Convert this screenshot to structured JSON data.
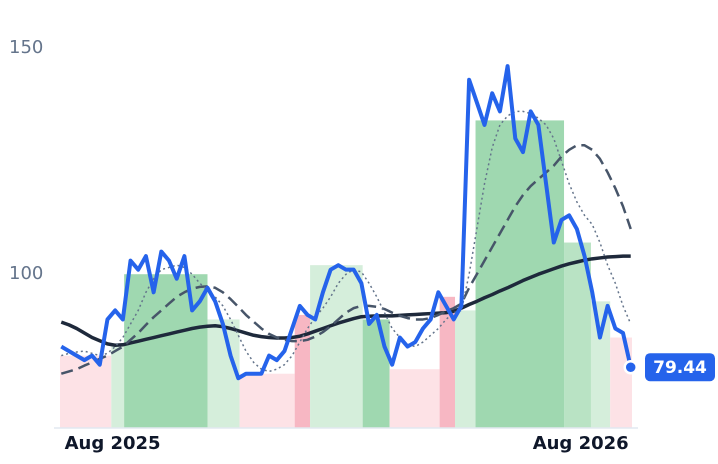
{
  "chart_data": {
    "type": "line",
    "x": [
      -40,
      -34,
      -28,
      -22,
      -16,
      -10,
      -4,
      2,
      8,
      14,
      20,
      26,
      32,
      38,
      44,
      50,
      56,
      62,
      68,
      74,
      80,
      86,
      92,
      98,
      104,
      110,
      116,
      122,
      128,
      134,
      140,
      146,
      152,
      158,
      164,
      170,
      176,
      182,
      188,
      194,
      200,
      206,
      212,
      218,
      224,
      230,
      236,
      242,
      248,
      254,
      260,
      266,
      272,
      278,
      284,
      290,
      296,
      302,
      308,
      314,
      320,
      326,
      332,
      338,
      344,
      350,
      356,
      362,
      368,
      374,
      380,
      386,
      392,
      398,
      404
    ],
    "series": [
      {
        "color": "#1e293b",
        "style": "solid",
        "width": 3.5,
        "values": [
          89.4,
          88.8,
          88,
          87,
          86,
          85.3,
          84.6,
          84.3,
          84.4,
          84.8,
          85.2,
          85.6,
          86,
          86.4,
          86.8,
          87.2,
          87.6,
          88,
          88.3,
          88.5,
          88.6,
          88.4,
          88,
          87.5,
          87,
          86.5,
          86.2,
          86,
          85.9,
          85.9,
          86,
          86.3,
          86.8,
          87.4,
          88,
          88.6,
          89.2,
          89.7,
          90.2,
          90.6,
          90.7,
          90.8,
          90.8,
          90.8,
          90.9,
          91,
          91.1,
          91.2,
          91.3,
          91.4,
          91.5,
          91.8,
          92.5,
          93.3,
          94,
          94.8,
          95.5,
          96.3,
          97,
          97.8,
          98.6,
          99.3,
          100,
          100.6,
          101.2,
          101.8,
          102.3,
          102.7,
          103.1,
          103.4,
          103.6,
          103.8,
          103.9,
          104,
          104
        ]
      },
      {
        "color": "#475569",
        "style": "dashed",
        "width": 2.5,
        "values": [
          78,
          78.5,
          79,
          79.8,
          80.5,
          81.3,
          82,
          83,
          84,
          85.5,
          87,
          88.8,
          90.5,
          92,
          93.5,
          95,
          96,
          96.8,
          97.2,
          97.3,
          97,
          96,
          94.5,
          92.8,
          91,
          89.5,
          88,
          86.8,
          86,
          85.5,
          85.2,
          85.2,
          85.5,
          86.2,
          87.2,
          88.5,
          90,
          91.5,
          92.5,
          93,
          93,
          92.8,
          92.3,
          91.5,
          90.8,
          90.3,
          90,
          90,
          90.3,
          91,
          91.8,
          92.5,
          93.5,
          97,
          100,
          103,
          106,
          109,
          112,
          115,
          117.5,
          119.5,
          121,
          122.5,
          124,
          126,
          127.5,
          128.5,
          128.5,
          127.5,
          125.5,
          122.5,
          119,
          115,
          110
        ]
      },
      {
        "color": "#64748b",
        "style": "dotted",
        "width": 1.5,
        "values": [
          82,
          82.5,
          82.8,
          83,
          82.5,
          82,
          82.5,
          84,
          86,
          89,
          92,
          96,
          99,
          101,
          101.5,
          102,
          101.5,
          100,
          98,
          96.5,
          95,
          93,
          90,
          86.5,
          83,
          80.5,
          79,
          78.5,
          79,
          80,
          82,
          85,
          88,
          90.5,
          92.5,
          95,
          98,
          100,
          101,
          100.5,
          98,
          95,
          91.5,
          88,
          86,
          84.5,
          84,
          85,
          86.5,
          88,
          90,
          91.5,
          92,
          100,
          110,
          120,
          128,
          133,
          135,
          136,
          136,
          135.5,
          134.5,
          133,
          130,
          125,
          120,
          116,
          113,
          111,
          107,
          102,
          98,
          93,
          89
        ]
      },
      {
        "color": "#2563eb",
        "style": "solid",
        "width": 4,
        "values": [
          84,
          83,
          82,
          81,
          82,
          80,
          90,
          92,
          90,
          103,
          101,
          104,
          96,
          105,
          103,
          99,
          104,
          92,
          94,
          97,
          94,
          89,
          82,
          77,
          78,
          78,
          78,
          82,
          81,
          83,
          88,
          93,
          91,
          90,
          96,
          101,
          102,
          101,
          101,
          98,
          89,
          91,
          84,
          80,
          86,
          84,
          85,
          88,
          90,
          96,
          93,
          90,
          93,
          143,
          138,
          133,
          140,
          136,
          146,
          130,
          127,
          136,
          133,
          120,
          107,
          112,
          113,
          110,
          104,
          96,
          86,
          93,
          88,
          87,
          79.44
        ]
      }
    ],
    "background": [
      {
        "start": -41,
        "end": -1,
        "value": 82,
        "color": "#fde2e6"
      },
      {
        "start": -1,
        "end": 9,
        "value": 84,
        "color": "#d5eedb"
      },
      {
        "start": 9,
        "end": 74,
        "value": 100,
        "color": "#9fd8b0"
      },
      {
        "start": 74,
        "end": 99,
        "value": 90,
        "color": "#d5eedb"
      },
      {
        "start": 99,
        "end": 142,
        "value": 78,
        "color": "#fde2e6"
      },
      {
        "start": 142,
        "end": 154,
        "value": 91,
        "color": "#f7b7c3"
      },
      {
        "start": 154,
        "end": 195,
        "value": 102,
        "color": "#d5eedb"
      },
      {
        "start": 195,
        "end": 216,
        "value": 90,
        "color": "#9fd8b0"
      },
      {
        "start": 216,
        "end": 255,
        "value": 79,
        "color": "#fde2e6"
      },
      {
        "start": 255,
        "end": 267,
        "value": 95,
        "color": "#f7b7c3"
      },
      {
        "start": 267,
        "end": 283,
        "value": 92,
        "color": "#d5eedb"
      },
      {
        "start": 283,
        "end": 352,
        "value": 134,
        "color": "#9fd8b0"
      },
      {
        "start": 352,
        "end": 373,
        "value": 107,
        "color": "#b9e3c4"
      },
      {
        "start": 373,
        "end": 388,
        "value": 94,
        "color": "#d5eedb"
      },
      {
        "start": 388,
        "end": 405,
        "value": 86,
        "color": "#fde2e6"
      }
    ],
    "xlim": [
      -41,
      405
    ],
    "xticks": [
      {
        "value": 0,
        "label": "Aug 2025"
      },
      {
        "value": 365,
        "label": "Aug 2026"
      }
    ],
    "ylim": [
      66,
      152
    ],
    "yticks": [
      100,
      150
    ]
  }
}
